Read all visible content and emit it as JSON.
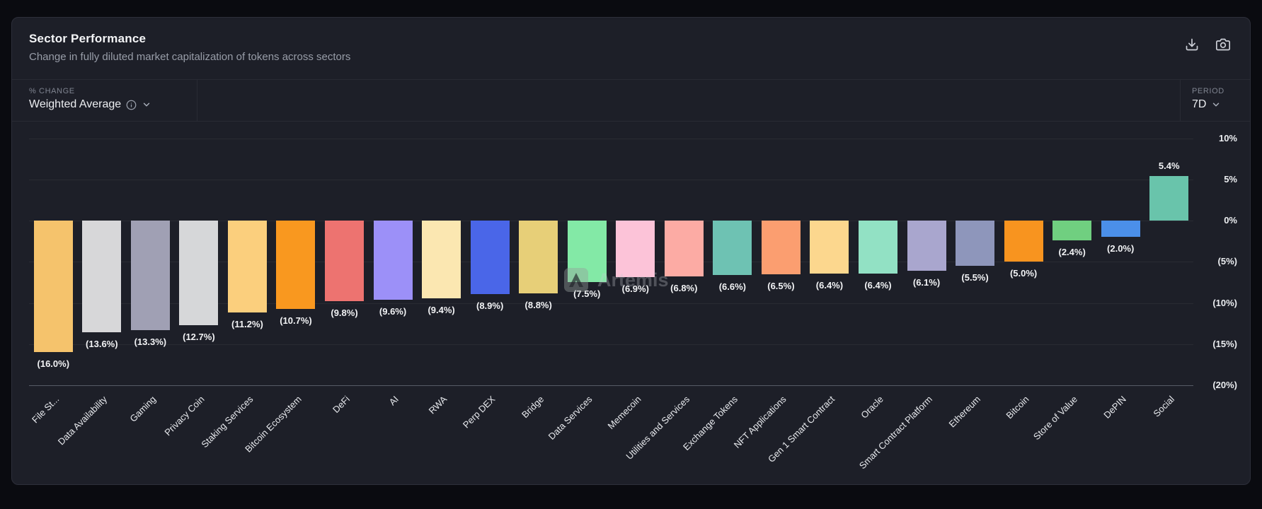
{
  "header": {
    "title": "Sector Performance",
    "subtitle": "Change in fully diluted market capitalization of tokens across sectors"
  },
  "controls": {
    "metric_label": "% CHANGE",
    "metric_value": "Weighted Average",
    "period_label": "PERIOD",
    "period_value": "7D"
  },
  "watermark": {
    "text": "Artemis"
  },
  "chart_data": {
    "type": "bar",
    "title": "Sector Performance",
    "ylabel": "% Change",
    "ylim": [
      -20,
      10
    ],
    "grid": true,
    "y_axis_position": "right",
    "y_ticks": [
      {
        "value": 10,
        "label": "10%"
      },
      {
        "value": 5,
        "label": "5%"
      },
      {
        "value": 0,
        "label": "0%"
      },
      {
        "value": -5,
        "label": "(5%)"
      },
      {
        "value": -10,
        "label": "(10%)"
      },
      {
        "value": -15,
        "label": "(15%)"
      },
      {
        "value": -20,
        "label": "(20%)"
      }
    ],
    "categories": [
      "File St...",
      "Data Availability",
      "Gaming",
      "Privacy Coin",
      "Staking Services",
      "Bitcoin Ecosystem",
      "DeFi",
      "AI",
      "RWA",
      "Perp DEX",
      "Bridge",
      "Data Services",
      "Memecoin",
      "Utilities and Services",
      "Exchange Tokens",
      "NFT Applications",
      "Gen 1 Smart Contract",
      "Oracle",
      "Smart Contract Platform",
      "Ethereum",
      "Bitcoin",
      "Store of Value",
      "DePIN",
      "Social"
    ],
    "values": [
      -16.0,
      -13.6,
      -13.3,
      -12.7,
      -11.2,
      -10.7,
      -9.8,
      -9.6,
      -9.4,
      -8.9,
      -8.8,
      -7.5,
      -6.9,
      -6.8,
      -6.6,
      -6.5,
      -6.4,
      -6.4,
      -6.1,
      -5.5,
      -5.0,
      -2.4,
      -2.0,
      5.4
    ],
    "value_labels": [
      "(16.0%)",
      "(13.6%)",
      "(13.3%)",
      "(12.7%)",
      "(11.2%)",
      "(10.7%)",
      "(9.8%)",
      "(9.6%)",
      "(9.4%)",
      "(8.9%)",
      "(8.8%)",
      "(7.5%)",
      "(6.9%)",
      "(6.8%)",
      "(6.6%)",
      "(6.5%)",
      "(6.4%)",
      "(6.4%)",
      "(6.1%)",
      "(5.5%)",
      "(5.0%)",
      "(2.4%)",
      "(2.0%)",
      "5.4%"
    ],
    "colors": [
      "#f5c36c",
      "#d7d7d9",
      "#a0a0b4",
      "#d6d7d9",
      "#fbcf7d",
      "#f9981f",
      "#ed7370",
      "#9c90f8",
      "#fbe7b1",
      "#4a66e8",
      "#e7cf78",
      "#83e9a6",
      "#fcc3d8",
      "#fcaba4",
      "#6ec2b3",
      "#fb9e70",
      "#fcd78e",
      "#92e1c4",
      "#a9a6ce",
      "#8e96bb",
      "#f8941f",
      "#70cf80",
      "#4b8fe9",
      "#69c4ab"
    ]
  }
}
